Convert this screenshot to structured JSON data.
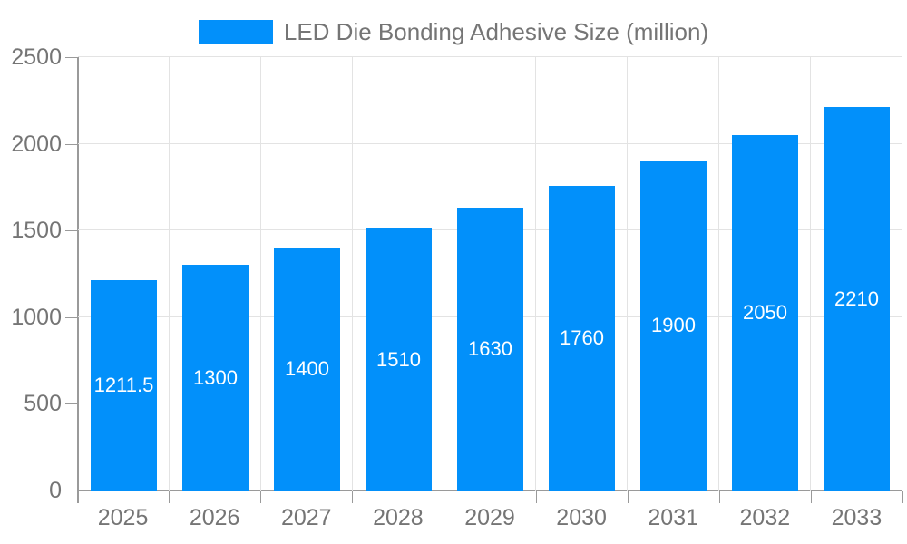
{
  "legend": {
    "label": "LED Die Bonding Adhesive Size (million)"
  },
  "chart_data": {
    "type": "bar",
    "title": "LED Die Bonding Adhesive Size (million)",
    "categories": [
      "2025",
      "2026",
      "2027",
      "2028",
      "2029",
      "2030",
      "2031",
      "2032",
      "2033"
    ],
    "values": [
      1211.5,
      1300,
      1400,
      1510,
      1630,
      1760,
      1900,
      2050,
      2210
    ],
    "value_labels": [
      "1211.5",
      "1300",
      "1400",
      "1510",
      "1630",
      "1760",
      "1900",
      "2050",
      "2210"
    ],
    "xlabel": "",
    "ylabel": "",
    "ylim": [
      0,
      2500
    ],
    "yticks": [
      0,
      500,
      1000,
      1500,
      2000,
      2500
    ],
    "grid": true,
    "legend_position": "top",
    "bar_label_position": "center",
    "colors": {
      "bar": "#0290fa",
      "bar_label": "#ffffff",
      "axis_text": "#757575",
      "axis_line": "#9a9a9a",
      "gridline": "#e3e3e3",
      "background": "#ffffff"
    }
  }
}
